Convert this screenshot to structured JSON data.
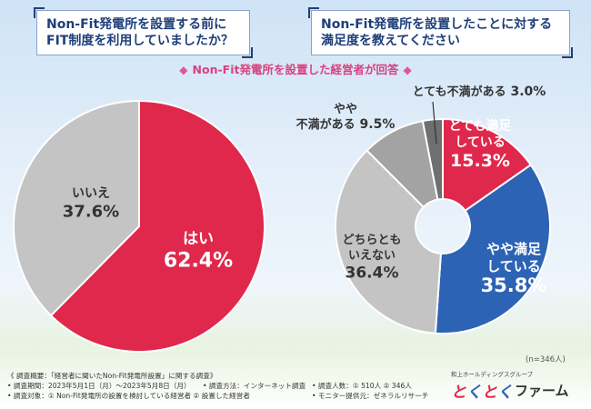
{
  "questions": {
    "q1": [
      "Non-Fit発電所を設置する前に",
      "FIT制度を利用していましたか？"
    ],
    "q2": [
      "Non-Fit発電所を設置したことに対する",
      "満足度を教えてください"
    ]
  },
  "subtitle": "Non-Fit発電所を設置した経営者が回答",
  "chart_data": [
    {
      "type": "pie",
      "title": "Non-Fit発電所を設置する前にFIT制度を利用していましたか？",
      "unit": "%",
      "slices": [
        {
          "label": "はい",
          "value": 62.4,
          "color": "#e0284c"
        },
        {
          "label": "いいえ",
          "value": 37.6,
          "color": "#c4c4c4"
        }
      ]
    },
    {
      "type": "pie",
      "donut": true,
      "title": "Non-Fit発電所を設置したことに対する満足度を教えてください",
      "unit": "%",
      "slices": [
        {
          "label": "とても満足している",
          "value": 15.3,
          "color": "#e0284c"
        },
        {
          "label": "やや満足している",
          "value": 35.8,
          "color": "#2d63b5"
        },
        {
          "label": "どちらともいえない",
          "value": 36.4,
          "color": "#c4c4c4"
        },
        {
          "label": "やや不満がある",
          "value": 9.5,
          "color": "#a3a3a3"
        },
        {
          "label": "とても不満がある",
          "value": 3.0,
          "color": "#6f6f6f"
        }
      ]
    }
  ],
  "n_label": "(n=346人)",
  "footer": {
    "line1": "《 調査概要：「経営者に聞いたNon-Fit発電所設置」に関する調査》",
    "line2a": "• 調査期間：2023年5月1日（月）～2023年5月8日（月）",
    "line2b": "• 調査方法：インターネット調査",
    "line2c": "• 調査人数：① 510人 ② 346人",
    "line3a": "• 調査対象：① Non-Fit発電所の設置を検討している経営者 ② 設置した経営者",
    "line3c": "• モニター提供元：ゼネラルリサーチ"
  },
  "logo": {
    "group": "和上ホールディングスグループ",
    "brand": [
      "と",
      "く",
      "と",
      "く"
    ],
    "brand_colors": [
      "#e0284c",
      "#2d63b5",
      "#e0284c",
      "#2d63b5"
    ],
    "suffix": "ファーム"
  }
}
